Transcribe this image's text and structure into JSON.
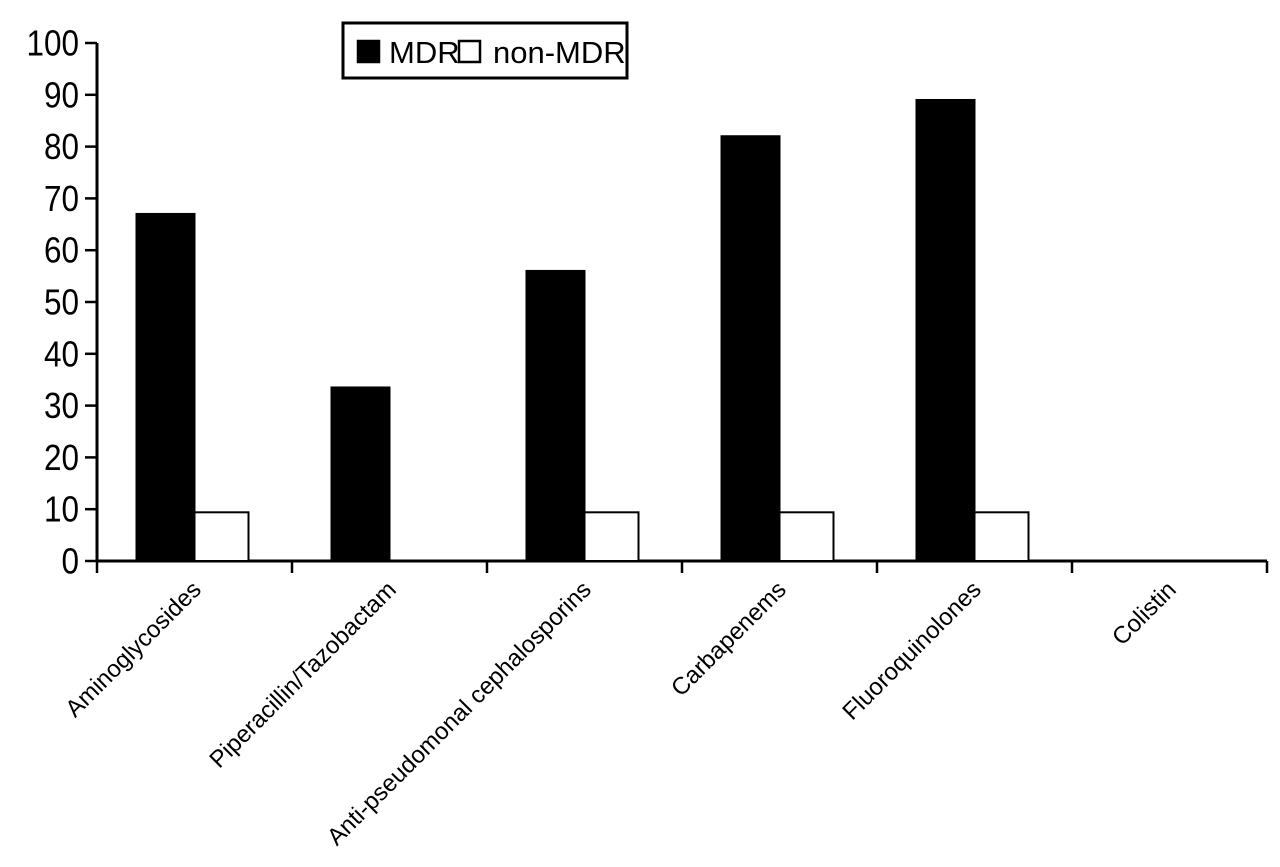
{
  "chart_data": {
    "type": "bar",
    "title": "",
    "xlabel": "",
    "ylabel": "",
    "categories": [
      "Aminoglycosides",
      "Piperacillin/Tazobactam",
      "Anti-pseudomonal cephalosporins",
      "Carbapenems",
      "Fluoroquinolones",
      "Colistin"
    ],
    "series": [
      {
        "name": "MDR",
        "fill": "#000000",
        "values": [
          67,
          33.5,
          56,
          82,
          89,
          0
        ]
      },
      {
        "name": "non-MDR",
        "fill": "#ffffff",
        "values": [
          9.4,
          0,
          9.4,
          9.4,
          9.4,
          0
        ]
      }
    ],
    "ylim": [
      0,
      100
    ],
    "y_tick_step": 10,
    "y_tick_labels": [
      "0",
      "10",
      "20",
      "30",
      "40",
      "50",
      "60",
      "70",
      "80",
      "90",
      "100"
    ],
    "legend": {
      "position": "top-center",
      "items": [
        {
          "label": "MDR",
          "swatch": "filled-black-square"
        },
        {
          "label": "non-MDR",
          "swatch": "outlined-white-square"
        }
      ]
    },
    "grid": false,
    "axis_color": "#000000",
    "background": "#ffffff"
  }
}
